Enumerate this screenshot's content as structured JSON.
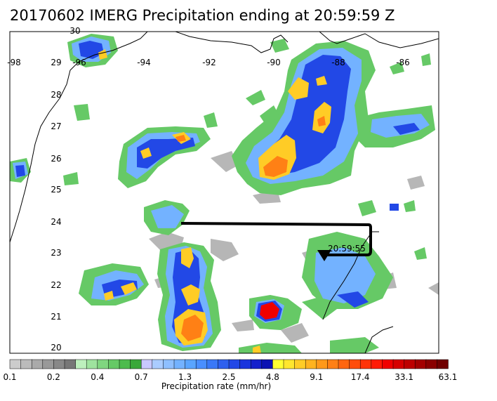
{
  "title": "20170602 IMERG Precipitation ending at 20:59:59 Z",
  "longitude_labels": [
    "-98",
    "-96",
    "-94",
    "-92",
    "-90",
    "-88",
    "-86"
  ],
  "latitude_labels": [
    "30",
    "29",
    "28",
    "27",
    "26",
    "25",
    "24",
    "23",
    "22",
    "21",
    "20"
  ],
  "track_label": "20:59:55",
  "colorbar": {
    "label": "Precipitation rate (mm/hr)",
    "tick_labels": [
      "0.1",
      "0.2",
      "0.4",
      "0.7",
      "1.3",
      "2.5",
      "4.8",
      "9.1",
      "17.4",
      "33.1",
      "63.1"
    ],
    "colors": [
      "#cccccc",
      "#bbbbbb",
      "#aaaaaa",
      "#999999",
      "#888888",
      "#777777",
      "#bdf0bd",
      "#9ee39e",
      "#80d680",
      "#66c966",
      "#4dbb4d",
      "#3aa83a",
      "#c8c8ff",
      "#aaccff",
      "#8ebfff",
      "#73b2ff",
      "#5aa5ff",
      "#4a8fff",
      "#3a78f7",
      "#2e60ee",
      "#2248e6",
      "#1a35dd",
      "#1420cc",
      "#0c12b3",
      "#ffff33",
      "#ffe62e",
      "#ffcc26",
      "#ffb31f",
      "#ff991a",
      "#ff8015",
      "#ff6610",
      "#ff4d0c",
      "#ff3308",
      "#ff1a05",
      "#f00000",
      "#d60000",
      "#bd0000",
      "#a30000",
      "#8a0000",
      "#700000"
    ]
  }
}
